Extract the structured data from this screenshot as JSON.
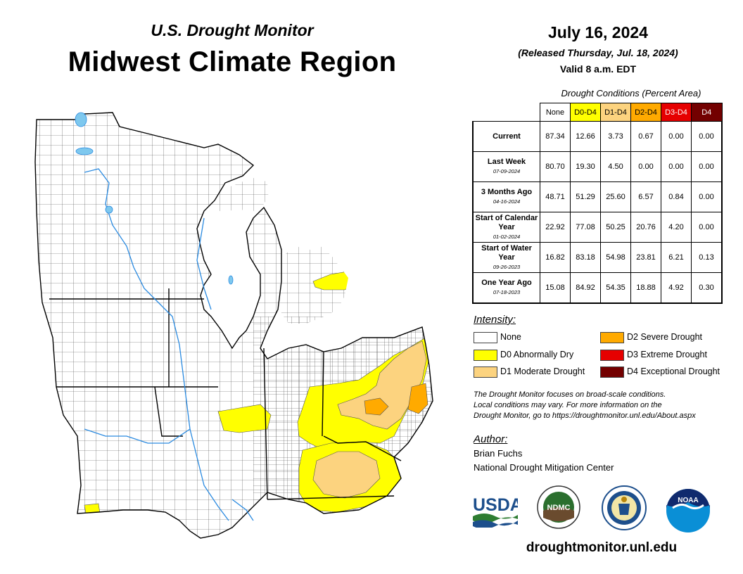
{
  "header": {
    "subtitle": "U.S. Drought Monitor",
    "title": "Midwest Climate Region",
    "date": "July 16, 2024",
    "released": "(Released Thursday, Jul. 18, 2024)",
    "valid": "Valid 8 a.m. EDT"
  },
  "conditions": {
    "caption": "Drought Conditions (Percent Area)",
    "columns": [
      {
        "label": "None",
        "color": "#ffffff",
        "text": "#000000"
      },
      {
        "label": "D0-D4",
        "color": "#ffff00",
        "text": "#000000"
      },
      {
        "label": "D1-D4",
        "color": "#fcd37f",
        "text": "#000000"
      },
      {
        "label": "D2-D4",
        "color": "#ffaa00",
        "text": "#000000"
      },
      {
        "label": "D3-D4",
        "color": "#e60000",
        "text": "#ffffff"
      },
      {
        "label": "D4",
        "color": "#730000",
        "text": "#ffffff"
      }
    ],
    "rows": [
      {
        "label": "Current",
        "sub": "",
        "values": [
          "87.34",
          "12.66",
          "3.73",
          "0.67",
          "0.00",
          "0.00"
        ]
      },
      {
        "label": "Last Week",
        "sub": "07-09-2024",
        "values": [
          "80.70",
          "19.30",
          "4.50",
          "0.00",
          "0.00",
          "0.00"
        ]
      },
      {
        "label": "3 Months Ago",
        "sub": "04-16-2024",
        "values": [
          "48.71",
          "51.29",
          "25.60",
          "6.57",
          "0.84",
          "0.00"
        ]
      },
      {
        "label": "Start of Calendar Year",
        "sub": "01-02-2024",
        "values": [
          "22.92",
          "77.08",
          "50.25",
          "20.76",
          "4.20",
          "0.00"
        ]
      },
      {
        "label": "Start of Water Year",
        "sub": "09-26-2023",
        "values": [
          "16.82",
          "83.18",
          "54.98",
          "23.81",
          "6.21",
          "0.13"
        ]
      },
      {
        "label": "One Year Ago",
        "sub": "07-18-2023",
        "values": [
          "15.08",
          "84.92",
          "54.35",
          "18.88",
          "4.92",
          "0.30"
        ]
      }
    ]
  },
  "legend": {
    "heading": "Intensity:",
    "items": [
      {
        "label": "None",
        "color": "#ffffff"
      },
      {
        "label": "D0 Abnormally Dry",
        "color": "#ffff00"
      },
      {
        "label": "D1 Moderate Drought",
        "color": "#fcd37f"
      },
      {
        "label": "D2 Severe Drought",
        "color": "#ffaa00"
      },
      {
        "label": "D3 Extreme Drought",
        "color": "#e60000"
      },
      {
        "label": "D4 Exceptional Drought",
        "color": "#730000"
      }
    ]
  },
  "note": {
    "line1": "The Drought Monitor focuses on broad-scale conditions.",
    "line2": "Local conditions may vary. For more information on the",
    "line3": "Drought Monitor, go to https://droughtmonitor.unl.edu/About.aspx"
  },
  "author": {
    "heading": "Author:",
    "name": "Brian Fuchs",
    "org": "National Drought Mitigation Center"
  },
  "logos": {
    "usda": "USDA",
    "ndmc": "NDMC",
    "noaa": "NOAA",
    "usda_icon": "usda-logo",
    "ndmc_icon": "ndmc-logo",
    "commerce_icon": "dept-of-commerce-seal",
    "noaa_icon": "noaa-logo"
  },
  "footer": {
    "url": "droughtmonitor.unl.edu"
  }
}
